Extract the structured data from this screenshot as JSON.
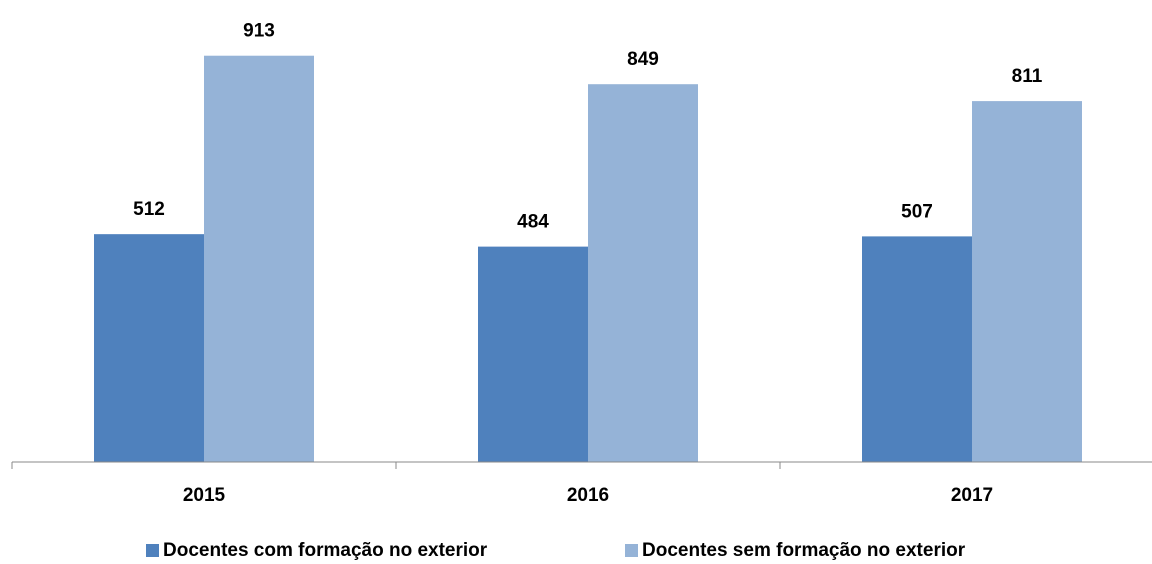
{
  "chart_data": {
    "type": "bar",
    "categories": [
      "2015",
      "2016",
      "2017"
    ],
    "series": [
      {
        "name": "Docentes com formação no exterior",
        "color": "#4f81bd",
        "values": [
          512,
          484,
          507
        ]
      },
      {
        "name": "Docentes sem formação no exterior",
        "color": "#95b3d7",
        "values": [
          913,
          849,
          811
        ]
      }
    ],
    "ylim": [
      0,
      1000
    ]
  }
}
